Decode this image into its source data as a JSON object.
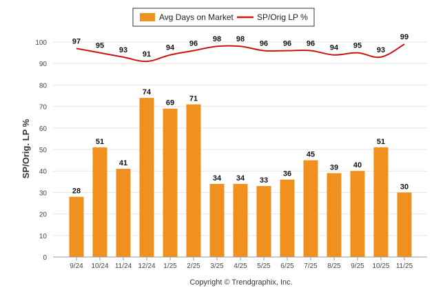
{
  "chart_data": {
    "type": "bar",
    "title": "",
    "xlabel": "",
    "ylabel": "SP/Orig. LP %",
    "ylim": [
      0,
      100
    ],
    "yticks": [
      0,
      10,
      20,
      30,
      40,
      50,
      60,
      70,
      80,
      90,
      100
    ],
    "categories": [
      "9/24",
      "10/24",
      "11/24",
      "12/24",
      "1/25",
      "2/25",
      "3/25",
      "4/25",
      "5/25",
      "6/25",
      "7/25",
      "8/25",
      "9/25",
      "10/25",
      "11/25"
    ],
    "series": [
      {
        "name": "Avg Days on Market",
        "type": "bar",
        "color": "#f0901e",
        "values": [
          28,
          51,
          41,
          74,
          69,
          71,
          34,
          34,
          33,
          36,
          45,
          39,
          40,
          51,
          30
        ]
      },
      {
        "name": "SP/Orig LP %",
        "type": "line",
        "color": "#cc1111",
        "values": [
          97,
          95,
          93,
          91,
          94,
          96,
          98,
          98,
          96,
          96,
          96,
          94,
          95,
          93,
          99
        ]
      }
    ],
    "legend_position": "top-center",
    "grid": true,
    "footer": "Copyright © Trendgraphix, Inc."
  }
}
